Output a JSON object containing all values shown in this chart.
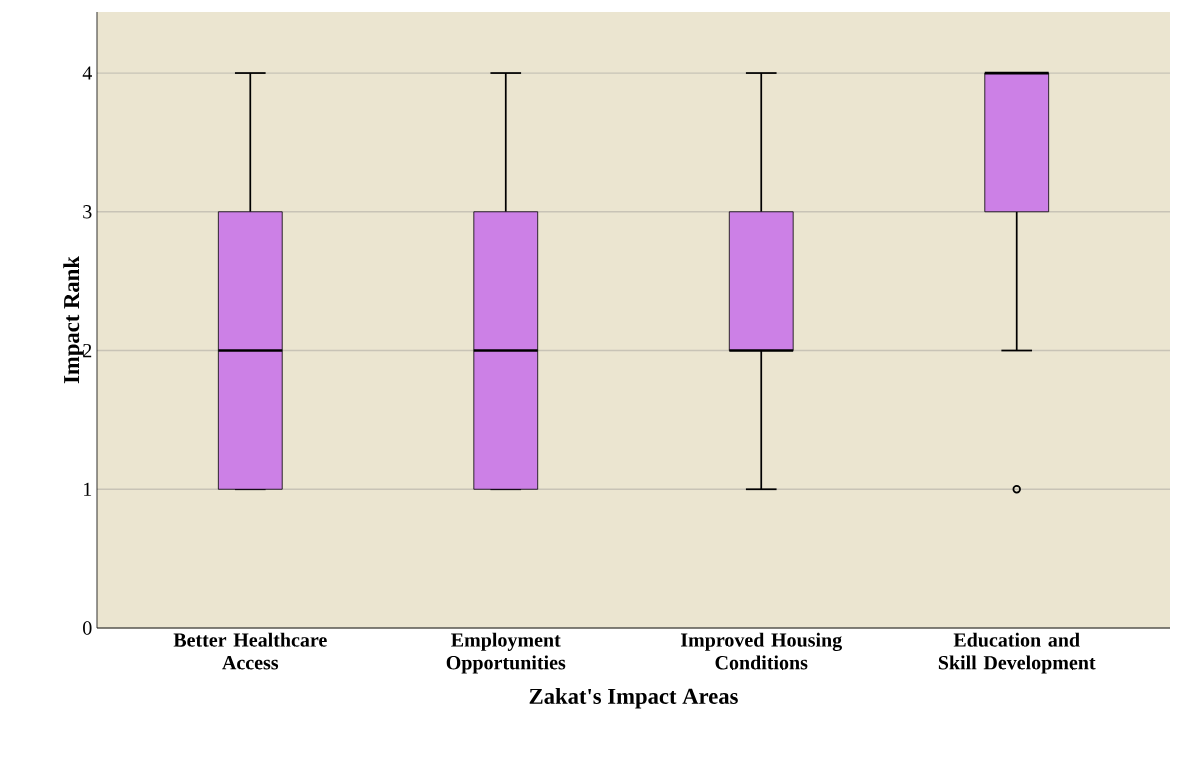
{
  "chart_data": {
    "type": "box",
    "xlabel": "Zakat's Impact Areas",
    "ylabel": "Impact Rank",
    "categories": [
      "Better Healthcare Access",
      "Employment Opportunities",
      "Improved Housing Conditions",
      "Education and Skill Development"
    ],
    "series": [
      {
        "color": "#cc80e6",
        "boxes": [
          {
            "low": 1,
            "q1": 1,
            "median": 2,
            "q3": 3,
            "high": 4
          },
          {
            "low": 1,
            "q1": 1,
            "median": 2,
            "q3": 3,
            "high": 4
          },
          {
            "low": 1,
            "q1": 2,
            "median": 2,
            "q3": 3,
            "high": 4
          },
          {
            "low": 2,
            "q1": 3,
            "median": 4,
            "q3": 4,
            "high": 4,
            "outliers": [
              1
            ]
          }
        ]
      }
    ],
    "ylim": [
      0,
      4.44
    ],
    "yticks": [
      0,
      1,
      2,
      3,
      4
    ],
    "grid": "y",
    "marker": "circle"
  }
}
